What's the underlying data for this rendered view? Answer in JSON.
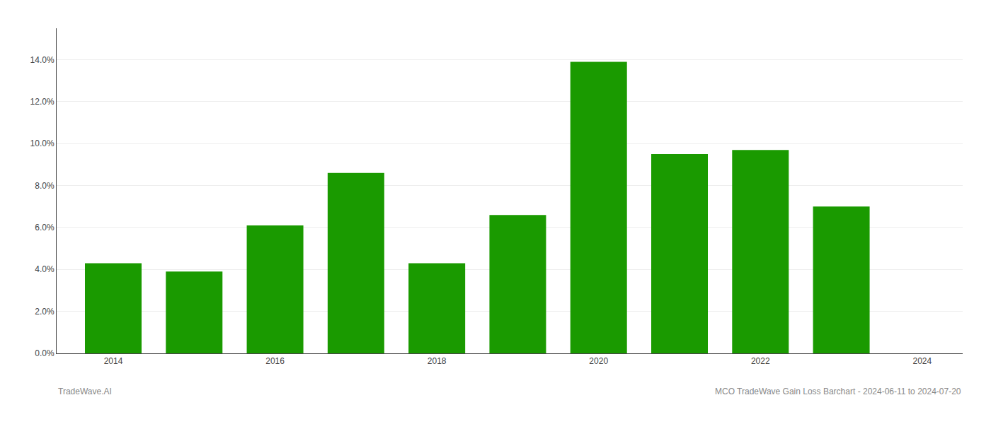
{
  "chart_data": {
    "type": "bar",
    "x": [
      2014,
      2015,
      2016,
      2017,
      2018,
      2019,
      2020,
      2021,
      2022,
      2023
    ],
    "values": [
      0.043,
      0.039,
      0.061,
      0.086,
      0.043,
      0.066,
      0.139,
      0.095,
      0.097,
      0.07
    ],
    "color": "#1a9a00",
    "xlim": [
      2013.3,
      2024.5
    ],
    "xticks": [
      2014,
      2016,
      2018,
      2020,
      2022,
      2024
    ],
    "ylim": [
      0,
      0.155
    ],
    "yticks": [
      {
        "value": 0.0,
        "label": "0.0%"
      },
      {
        "value": 0.02,
        "label": "2.0%"
      },
      {
        "value": 0.04,
        "label": "4.0%"
      },
      {
        "value": 0.06,
        "label": "6.0%"
      },
      {
        "value": 0.08,
        "label": "8.0%"
      },
      {
        "value": 0.1,
        "label": "10.0%"
      },
      {
        "value": 0.12,
        "label": "12.0%"
      },
      {
        "value": 0.14,
        "label": "14.0%"
      }
    ],
    "grid": true,
    "annotations": [
      "TradeWave.AI",
      "MCO TradeWave Gain Loss Barchart - 2024-06-11 to 2024-07-20"
    ]
  }
}
